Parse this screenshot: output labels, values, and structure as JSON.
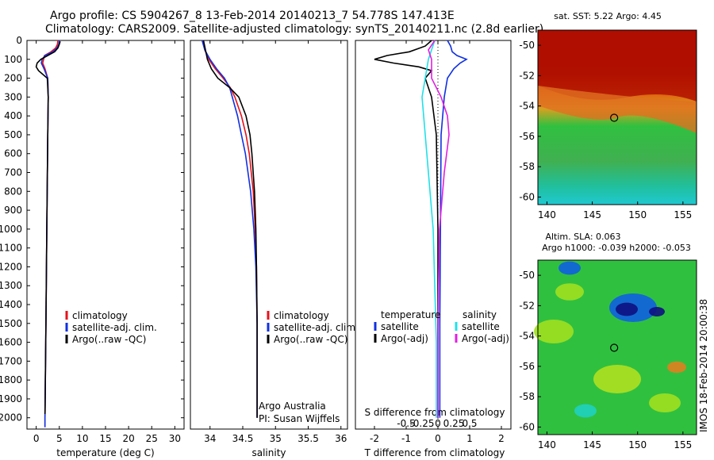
{
  "header": {
    "title_line1": "Argo profile: CS 5904267_8 13-Feb-2014 20140213_7 54.778S 147.413E",
    "title_line2": "Climatology: CARS2009. Satellite-adjusted climatology: synTS_20140211.nc (2.8d earlier)"
  },
  "side_stamp": "IMOS 18-Feb-2014 20:00:38",
  "colors": {
    "climatology": "#e8101a",
    "satellite": "#1030e0",
    "argo": "#000000",
    "satellite_diff": "#20e0e8",
    "argo_diff": "#e020e0"
  },
  "chart_data": [
    {
      "type": "line",
      "id": "temperature",
      "xlabel": "temperature (deg C)",
      "ylabel": "",
      "xlim": [
        -2,
        32
      ],
      "ylim": [
        2060,
        0
      ],
      "xticks": [
        0,
        5,
        10,
        15,
        20,
        25,
        30
      ],
      "yticks": [
        0,
        100,
        200,
        300,
        400,
        500,
        600,
        700,
        800,
        900,
        1000,
        1100,
        1200,
        1300,
        1400,
        1500,
        1600,
        1700,
        1800,
        1900,
        2000
      ],
      "legend": [
        "climatology",
        "satellite-adj. clim.",
        "Argo(..raw -QC)"
      ],
      "series": [
        {
          "name": "climatology",
          "y": [
            0,
            20,
            40,
            60,
            80,
            100,
            120,
            150,
            200,
            300,
            500,
            1000,
            1500,
            2000,
            2050
          ],
          "x": [
            4.7,
            4.6,
            4.2,
            3.2,
            1.8,
            1.6,
            1.4,
            1.9,
            2.5,
            2.6,
            2.5,
            2.3,
            2.1,
            1.9,
            1.9
          ]
        },
        {
          "name": "satellite-adj. clim.",
          "y": [
            0,
            20,
            40,
            60,
            80,
            100,
            120,
            150,
            200,
            300,
            500,
            1000,
            1500,
            2000,
            2050
          ],
          "x": [
            5.0,
            4.9,
            4.5,
            3.6,
            1.9,
            1.3,
            1.1,
            1.7,
            2.5,
            2.6,
            2.5,
            2.3,
            2.1,
            1.9,
            1.9
          ]
        },
        {
          "name": "Argo(..raw -QC)",
          "y": [
            5,
            20,
            40,
            60,
            80,
            100,
            120,
            140,
            160,
            200,
            300,
            500,
            1000,
            1500,
            1980
          ],
          "x": [
            5.2,
            5.0,
            4.7,
            4.0,
            2.5,
            1.0,
            0.2,
            0.0,
            0.5,
            2.4,
            2.6,
            2.5,
            2.3,
            2.1,
            1.9
          ]
        }
      ]
    },
    {
      "type": "line",
      "id": "salinity",
      "xlabel": "salinity",
      "xlim": [
        33.7,
        36.1
      ],
      "ylim": [
        2060,
        0
      ],
      "xticks": [
        34,
        34.5,
        35,
        35.5,
        36
      ],
      "legend": [
        "climatology",
        "satellite-adj. clim.",
        "Argo(..raw -QC)"
      ],
      "annotation": [
        "Argo Australia",
        "PI: Susan Wijffels"
      ],
      "series": [
        {
          "name": "climatology",
          "y": [
            0,
            50,
            100,
            150,
            200,
            250,
            300,
            400,
            500,
            600,
            800,
            1000,
            1200,
            1500,
            2000
          ],
          "x": [
            33.9,
            33.92,
            33.98,
            34.08,
            34.2,
            34.31,
            34.38,
            34.48,
            34.55,
            34.6,
            34.66,
            34.69,
            34.71,
            34.72,
            34.72
          ]
        },
        {
          "name": "satellite-adj. clim.",
          "y": [
            0,
            50,
            100,
            150,
            200,
            250,
            300,
            400,
            500,
            600,
            800,
            1000,
            1200,
            1500,
            2000
          ],
          "x": [
            33.88,
            33.92,
            34.0,
            34.1,
            34.22,
            34.3,
            34.34,
            34.42,
            34.48,
            34.54,
            34.62,
            34.67,
            34.7,
            34.72,
            34.72
          ]
        },
        {
          "name": "Argo(..raw -QC)",
          "y": [
            0,
            50,
            100,
            150,
            200,
            250,
            300,
            400,
            500,
            600,
            800,
            1000,
            1200,
            1500,
            2000
          ],
          "x": [
            33.9,
            33.93,
            33.96,
            34.02,
            34.12,
            34.3,
            34.44,
            34.55,
            34.61,
            34.64,
            34.68,
            34.7,
            34.71,
            34.72,
            34.72
          ]
        }
      ]
    },
    {
      "type": "line",
      "id": "difference",
      "xlabel_top": "S difference from climatology",
      "xlabel": "T difference from climatology",
      "xlim": [
        -2.6,
        2.3
      ],
      "ylim": [
        2060,
        0
      ],
      "xticks_T": [
        -2,
        -1,
        0,
        1,
        2
      ],
      "xticks_S": [
        "-0.5",
        "-0.25",
        "0",
        "0.25",
        "0.5"
      ],
      "xticks_S_pos": [
        -1,
        -0.5,
        0,
        0.5,
        1
      ],
      "legend_left_title": "temperature",
      "legend_right_title": "salinity",
      "legend": [
        "satellite",
        "Argo(-adj)",
        "satellite",
        "Argo(-adj)"
      ],
      "series": [
        {
          "name": "temperature satellite",
          "y": [
            0,
            30,
            60,
            80,
            100,
            120,
            150,
            200,
            300,
            500,
            1000,
            1500,
            2000
          ],
          "x": [
            0.3,
            0.4,
            0.45,
            0.6,
            0.9,
            0.7,
            0.5,
            0.3,
            0.2,
            0.1,
            0.08,
            0.06,
            0.06
          ]
        },
        {
          "name": "temperature Argo(-adj)",
          "y": [
            0,
            30,
            60,
            80,
            100,
            120,
            140,
            160,
            200,
            300,
            500,
            1000,
            1500,
            2000
          ],
          "x": [
            -0.2,
            -0.4,
            -0.9,
            -1.6,
            -2.0,
            -1.4,
            -0.6,
            -0.2,
            -0.4,
            -0.2,
            -0.05,
            0.0,
            0.0,
            0.0
          ]
        },
        {
          "name": "salinity satellite",
          "y": [
            0,
            50,
            100,
            200,
            300,
            400,
            500,
            700,
            1000,
            1300,
            1600,
            2000
          ],
          "x": [
            -0.1,
            -0.2,
            -0.3,
            -0.4,
            -0.5,
            -0.45,
            -0.4,
            -0.3,
            -0.15,
            -0.1,
            -0.05,
            -0.05
          ]
        },
        {
          "name": "salinity Argo(-adj)",
          "y": [
            0,
            50,
            100,
            200,
            300,
            400,
            500,
            700,
            1000,
            1300,
            1600,
            2000
          ],
          "x": [
            -0.1,
            -0.3,
            -0.2,
            -0.2,
            0.1,
            0.3,
            0.35,
            0.2,
            0.05,
            0.02,
            0.0,
            0.0
          ]
        }
      ]
    },
    {
      "type": "heatmap",
      "id": "sst_map",
      "title": "sat. SST: 5.22  Argo: 4.45",
      "xlim": [
        139,
        156.5
      ],
      "ylim": [
        -60.5,
        -49
      ],
      "xticks": [
        140,
        145,
        150,
        155
      ],
      "yticks": [
        -50,
        -52,
        -54,
        -56,
        -58,
        -60
      ],
      "marker": {
        "lon": 147.413,
        "lat": -54.778
      }
    },
    {
      "type": "heatmap",
      "id": "sla_map",
      "title": "Altim. SLA: 0.063",
      "subtitle": "Argo h1000: -0.039 h2000: -0.053",
      "xlim": [
        139,
        156.5
      ],
      "ylim": [
        -60.5,
        -49
      ],
      "xticks": [
        140,
        145,
        150,
        155
      ],
      "yticks": [
        -50,
        -52,
        -54,
        -56,
        -58,
        -60
      ],
      "marker": {
        "lon": 147.413,
        "lat": -54.778
      }
    }
  ]
}
